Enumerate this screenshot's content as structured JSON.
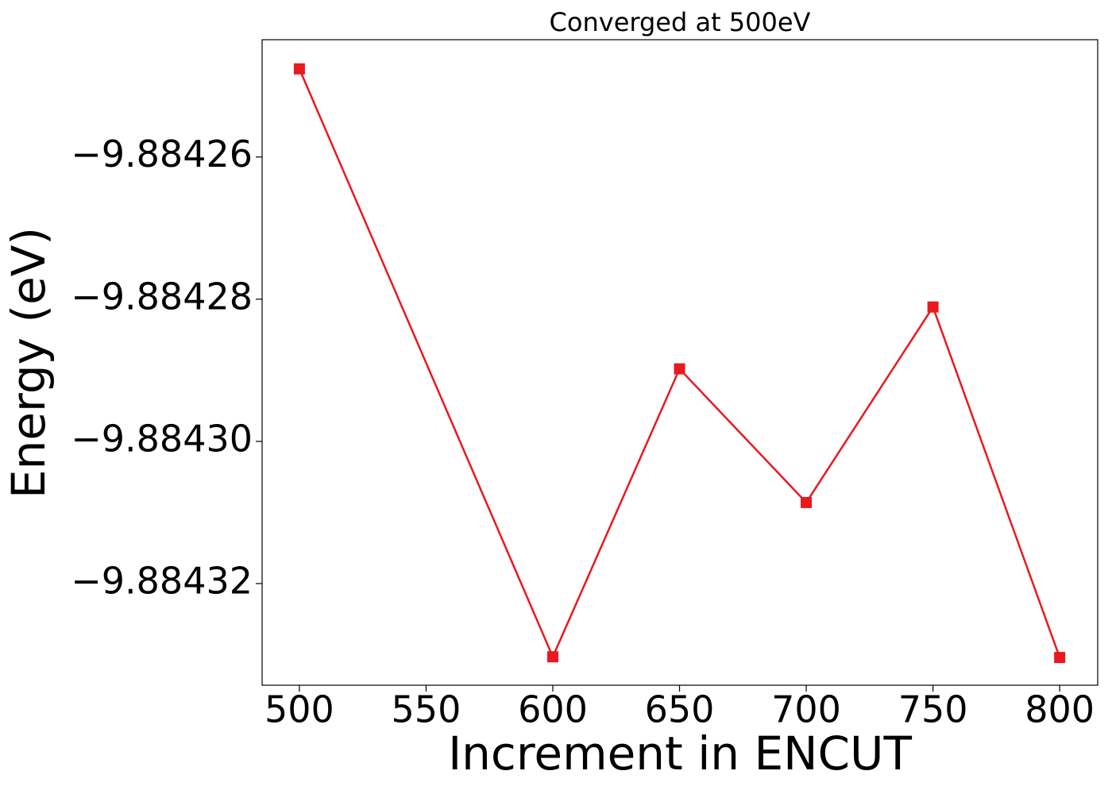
{
  "chart_data": {
    "type": "line",
    "title": "Converged at 500eV",
    "x_label": "Increment in ENCUT",
    "y_label": "Energy (eV)",
    "x": [
      500,
      600,
      650,
      700,
      750,
      800
    ],
    "series": [
      {
        "color": "#e8191f",
        "marker": "square",
        "values": [
          -9.8842476,
          -9.8843303,
          -9.8842898,
          -9.8843086,
          -9.8842811,
          -9.8843304
        ]
      }
    ],
    "xlim": [
      485.3,
      815.0
    ],
    "xticks": [
      500,
      550,
      600,
      650,
      700,
      750,
      800
    ],
    "ylim": [
      -9.8843343,
      -9.8842435
    ],
    "yticks": [
      {
        "value": -9.88426,
        "label": "−9.88426"
      },
      {
        "value": -9.88428,
        "label": "−9.88428"
      },
      {
        "value": -9.8843,
        "label": "−9.88430"
      },
      {
        "value": -9.88432,
        "label": "−9.88432"
      }
    ],
    "grid": false
  }
}
